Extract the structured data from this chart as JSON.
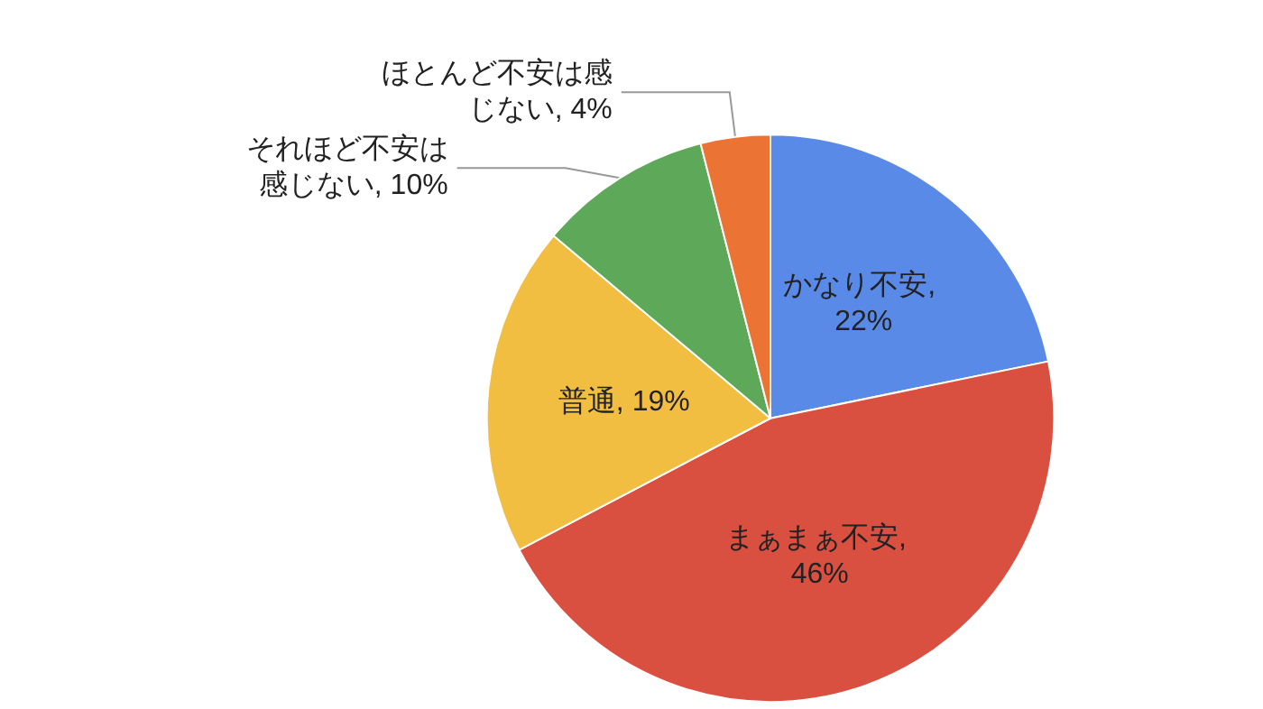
{
  "chart_data": {
    "type": "pie",
    "categories": [
      "かなり不安",
      "まぁまぁ不安",
      "普通",
      "それほど不安は感じない",
      "ほとんど不安は感じない"
    ],
    "values": [
      22,
      46,
      19,
      10,
      4
    ],
    "colors": [
      "#5a8ae8",
      "#d95040",
      "#f2be42",
      "#5ea85a",
      "#eb7434"
    ],
    "value_labels": [
      ", 22%",
      ", 46%",
      ", 19%",
      ", 10%",
      ", 4%"
    ],
    "legend": false
  }
}
